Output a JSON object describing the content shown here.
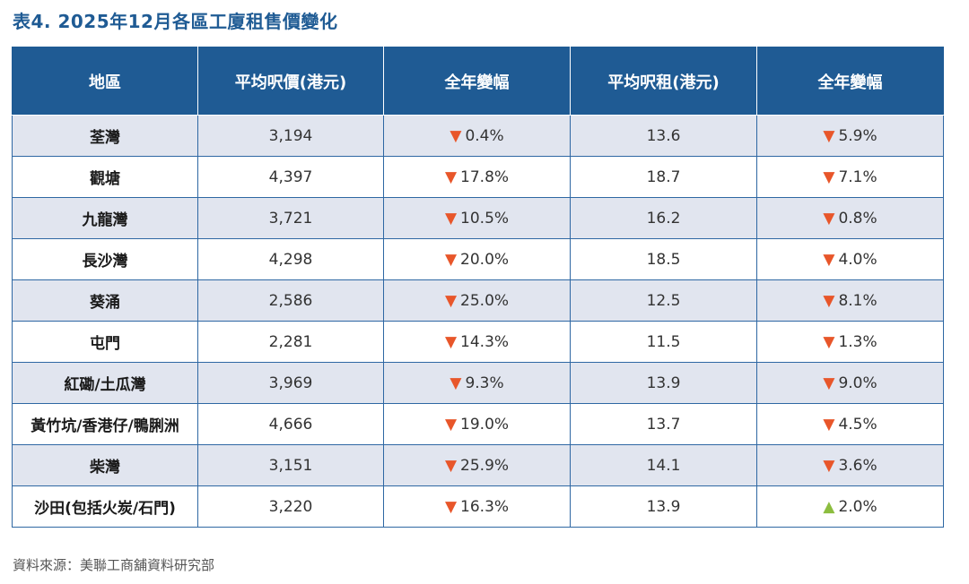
{
  "title": "表4. 2025年12月各區工廈租售價變化",
  "colors": {
    "header_bg": "#1f5b94",
    "row_alt_bg": "#e1e5ef",
    "down": "#e8562a",
    "up": "#8cbd3f"
  },
  "table": {
    "headers": [
      "地區",
      "平均呎價(港元)",
      "全年變幅",
      "平均呎租(港元)",
      "全年變幅"
    ],
    "rows": [
      {
        "district": "荃灣",
        "price": "3,194",
        "price_dir": "down",
        "price_change": "0.4%",
        "rent": "13.6",
        "rent_dir": "down",
        "rent_change": "5.9%"
      },
      {
        "district": "觀塘",
        "price": "4,397",
        "price_dir": "down",
        "price_change": "17.8%",
        "rent": "18.7",
        "rent_dir": "down",
        "rent_change": "7.1%"
      },
      {
        "district": "九龍灣",
        "price": "3,721",
        "price_dir": "down",
        "price_change": "10.5%",
        "rent": "16.2",
        "rent_dir": "down",
        "rent_change": "0.8%"
      },
      {
        "district": "長沙灣",
        "price": "4,298",
        "price_dir": "down",
        "price_change": "20.0%",
        "rent": "18.5",
        "rent_dir": "down",
        "rent_change": "4.0%"
      },
      {
        "district": "葵涌",
        "price": "2,586",
        "price_dir": "down",
        "price_change": "25.0%",
        "rent": "12.5",
        "rent_dir": "down",
        "rent_change": "8.1%"
      },
      {
        "district": "屯門",
        "price": "2,281",
        "price_dir": "down",
        "price_change": "14.3%",
        "rent": "11.5",
        "rent_dir": "down",
        "rent_change": "1.3%"
      },
      {
        "district": "紅磡/土瓜灣",
        "price": "3,969",
        "price_dir": "down",
        "price_change": "9.3%",
        "rent": "13.9",
        "rent_dir": "down",
        "rent_change": "9.0%"
      },
      {
        "district": "黃竹坑/香港仔/鴨脷洲",
        "price": "4,666",
        "price_dir": "down",
        "price_change": "19.0%",
        "rent": "13.7",
        "rent_dir": "down",
        "rent_change": "4.5%"
      },
      {
        "district": "柴灣",
        "price": "3,151",
        "price_dir": "down",
        "price_change": "25.9%",
        "rent": "14.1",
        "rent_dir": "down",
        "rent_change": "3.6%"
      },
      {
        "district": "沙田(包括火炭/石門)",
        "price": "3,220",
        "price_dir": "down",
        "price_change": "16.3%",
        "rent": "13.9",
        "rent_dir": "up",
        "rent_change": "2.0%"
      }
    ]
  },
  "source": "資料來源：美聯工商舖資料研究部"
}
